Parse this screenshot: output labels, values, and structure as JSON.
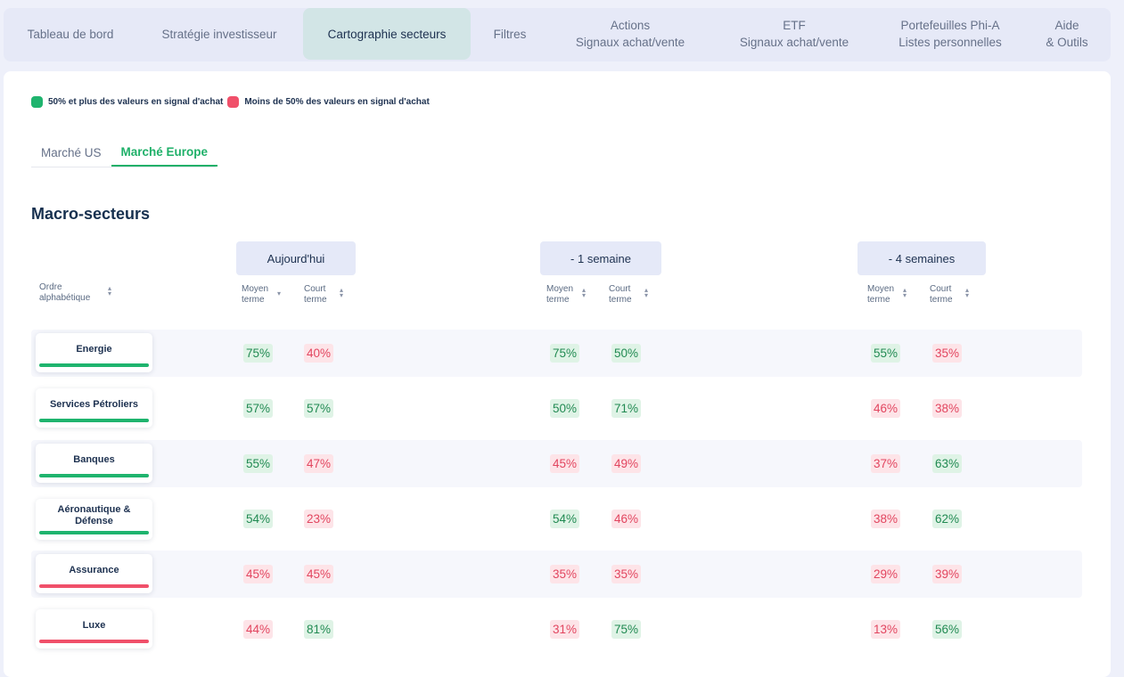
{
  "nav": {
    "items": [
      {
        "line1": "Tableau de bord",
        "line2": ""
      },
      {
        "line1": "Stratégie investisseur",
        "line2": ""
      },
      {
        "line1": "Cartographie secteurs",
        "line2": ""
      },
      {
        "line1": "Filtres",
        "line2": ""
      },
      {
        "line1": "Actions",
        "line2": "Signaux achat/vente"
      },
      {
        "line1": "ETF",
        "line2": "Signaux achat/vente"
      },
      {
        "line1": "Portefeuilles Phi-A",
        "line2": "Listes personnelles"
      },
      {
        "line1": "Aide",
        "line2": "& Outils"
      }
    ],
    "active": "Cartographie secteurs"
  },
  "legend": {
    "positive_label": "50% et plus des valeurs en signal d'achat",
    "negative_label": "Moins de 50% des valeurs en signal d'achat",
    "positive_color": "#1fb46e",
    "negative_color": "#f0506a"
  },
  "market_tabs": [
    {
      "label": "Marché US"
    },
    {
      "label": "Marché Europe"
    }
  ],
  "active_market": "Marché Europe",
  "section_title": "Macro-secteurs",
  "sort_label": {
    "line1": "Ordre",
    "line2": "alphabétique"
  },
  "periods": [
    {
      "label": "Aujourd'hui",
      "col1": {
        "line1": "Moyen",
        "line2": "terme"
      },
      "col2": {
        "line1": "Court",
        "line2": "terme"
      }
    },
    {
      "label": "- 1 semaine",
      "col1": {
        "line1": "Moyen",
        "line2": "terme"
      },
      "col2": {
        "line1": "Court",
        "line2": "terme"
      }
    },
    {
      "label": "- 4 semaines",
      "col1": {
        "line1": "Moyen",
        "line2": "terme"
      },
      "col2": {
        "line1": "Court",
        "line2": "terme"
      }
    }
  ],
  "rows": [
    {
      "name": "Energie",
      "status": "positive",
      "values": [
        "75%",
        "40%",
        "75%",
        "50%",
        "55%",
        "35%"
      ]
    },
    {
      "name": "Services Pétroliers",
      "status": "positive",
      "values": [
        "57%",
        "57%",
        "50%",
        "71%",
        "46%",
        "38%"
      ]
    },
    {
      "name": "Banques",
      "status": "positive",
      "values": [
        "55%",
        "47%",
        "45%",
        "49%",
        "37%",
        "63%"
      ]
    },
    {
      "name": "Aéronautique & Défense",
      "status": "positive",
      "values": [
        "54%",
        "23%",
        "54%",
        "46%",
        "38%",
        "62%"
      ]
    },
    {
      "name": "Assurance",
      "status": "negative",
      "values": [
        "45%",
        "45%",
        "35%",
        "35%",
        "29%",
        "39%"
      ]
    },
    {
      "name": "Luxe",
      "status": "negative",
      "values": [
        "44%",
        "81%",
        "31%",
        "75%",
        "13%",
        "56%"
      ]
    }
  ]
}
